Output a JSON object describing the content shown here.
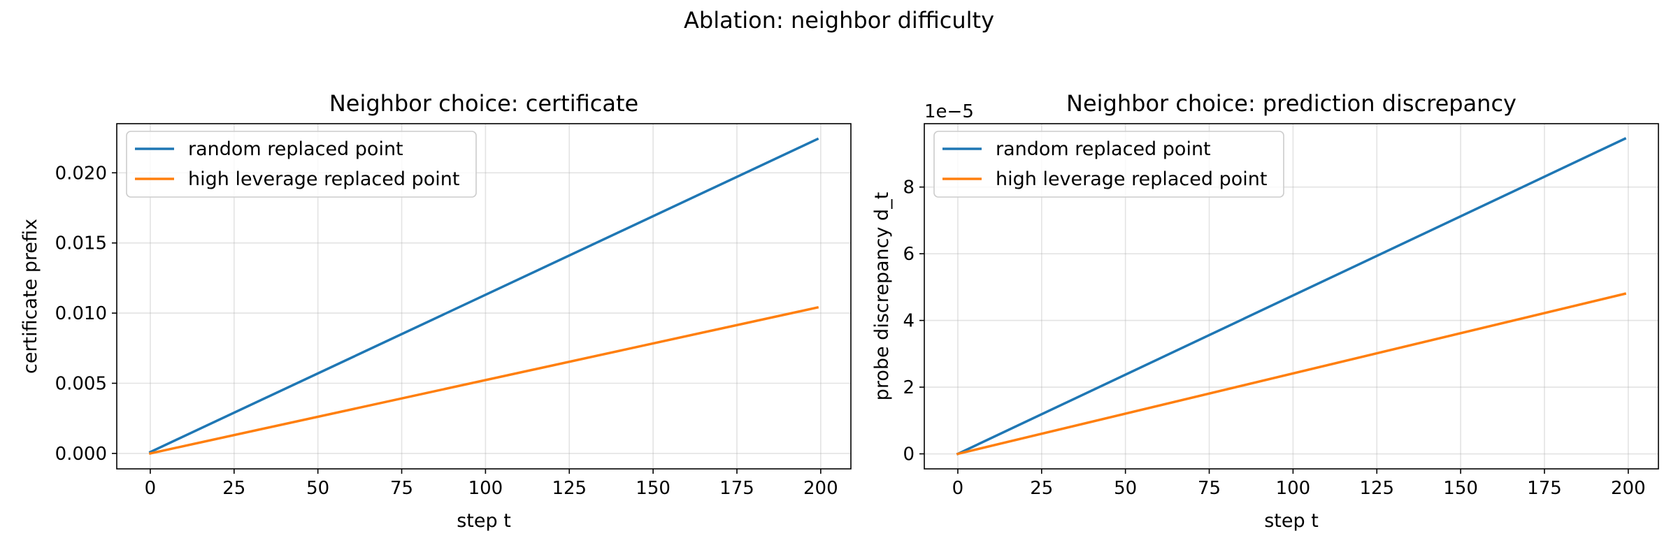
{
  "figure": {
    "suptitle": "Ablation: neighbor difficulty"
  },
  "chart_data": [
    {
      "type": "line",
      "title": "Neighbor choice: certificate",
      "xlabel": "step t",
      "ylabel": "certificate prefix",
      "xlim": [
        -10,
        209
      ],
      "ylim": [
        -0.0011,
        0.0235
      ],
      "xticks": [
        0,
        25,
        50,
        75,
        100,
        125,
        150,
        175,
        200
      ],
      "yticks": [
        0.0,
        0.005,
        0.01,
        0.015,
        0.02
      ],
      "ytick_labels": [
        "0.000",
        "0.005",
        "0.010",
        "0.015",
        "0.020"
      ],
      "offset_label": "",
      "grid": true,
      "legend_position": "upper left",
      "series": [
        {
          "name": "random replaced point",
          "color": "#1f77b4",
          "x": [
            0,
            199
          ],
          "y": [
            0.0001,
            0.0224
          ]
        },
        {
          "name": "high leverage replaced point",
          "color": "#ff7f0e",
          "x": [
            0,
            199
          ],
          "y": [
            0.0,
            0.0104
          ]
        }
      ]
    },
    {
      "type": "line",
      "title": "Neighbor choice: prediction discrepancy",
      "xlabel": "step t",
      "ylabel": "probe discrepancy d_t",
      "xlim": [
        -10,
        209
      ],
      "ylim": [
        -0.45,
        9.9
      ],
      "xticks": [
        0,
        25,
        50,
        75,
        100,
        125,
        150,
        175,
        200
      ],
      "yticks": [
        0,
        2,
        4,
        6,
        8
      ],
      "ytick_labels": [
        "0",
        "2",
        "4",
        "6",
        "8"
      ],
      "offset_label": "1e−5",
      "grid": true,
      "legend_position": "upper left",
      "series": [
        {
          "name": "random replaced point",
          "color": "#1f77b4",
          "x": [
            0,
            199
          ],
          "y": [
            0.0,
            9.45
          ]
        },
        {
          "name": "high leverage replaced point",
          "color": "#ff7f0e",
          "x": [
            0,
            199
          ],
          "y": [
            0.0,
            4.8
          ]
        }
      ]
    }
  ]
}
